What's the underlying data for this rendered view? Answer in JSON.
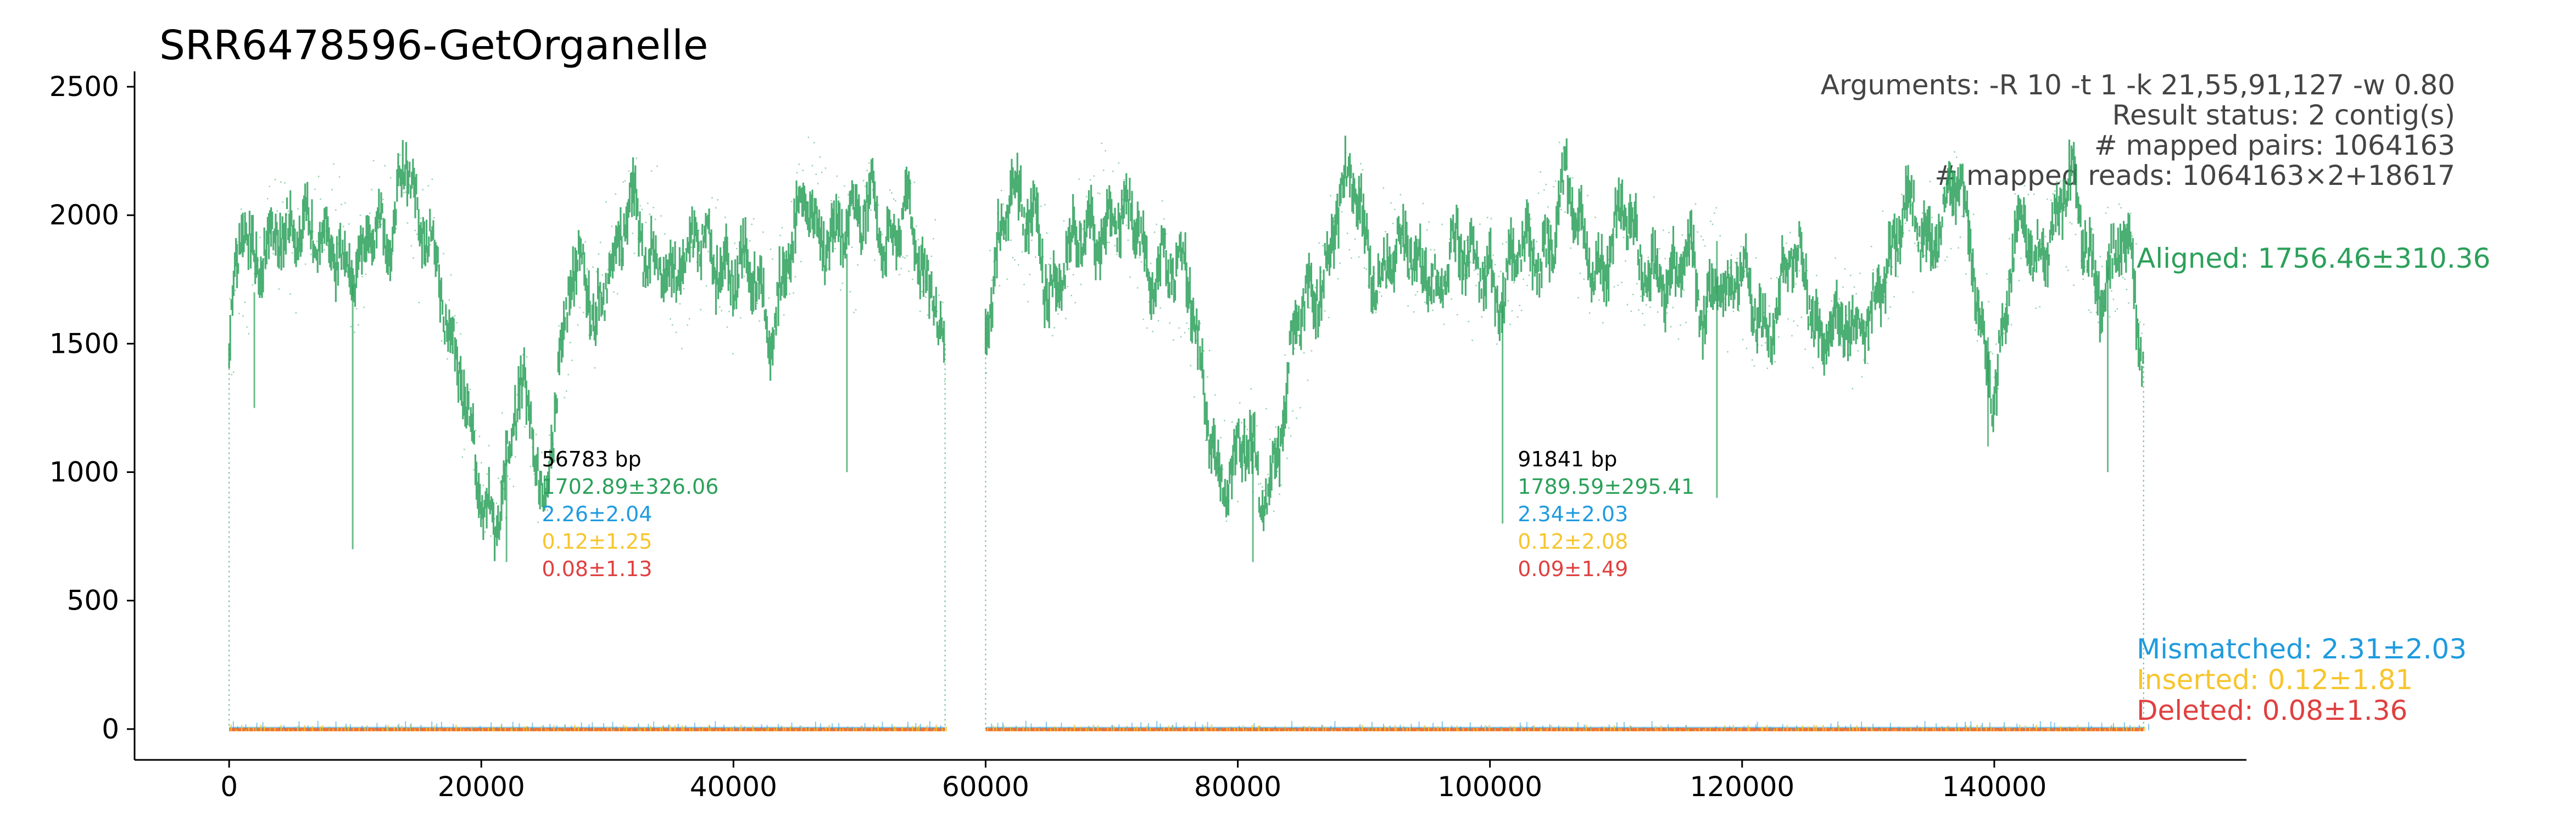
{
  "chart_data": {
    "type": "scatter",
    "title": "SRR6478596-GetOrganelle",
    "xlabel": "",
    "ylabel": "",
    "xlim": [
      -7500,
      160000
    ],
    "ylim": [
      -120,
      2560
    ],
    "x_ticks": [
      0,
      20000,
      40000,
      60000,
      80000,
      100000,
      120000,
      140000
    ],
    "y_ticks": [
      0,
      500,
      1000,
      1500,
      2000,
      2500
    ],
    "grid": false,
    "arguments_text": [
      "Arguments: -R 10 -t 1 -k 21,55,91,127 -w 0.80",
      "Result status: 2 contig(s)",
      "# mapped pairs: 1064163",
      "# mapped reads: 1064163×2+18617"
    ],
    "colors": {
      "aligned": "#2ca05a",
      "mismatched": "#1f9bde",
      "inserted": "#f7c52d",
      "deleted": "#e04040",
      "deleted_line": "#f07030"
    },
    "contigs": [
      {
        "x_start": 0,
        "x_end": 56783,
        "label_x": 24800,
        "length": "56783 bp",
        "aligned": "1702.89±326.06",
        "mismatched": "2.26±2.04",
        "inserted": "0.12±1.25",
        "deleted": "0.08±1.13",
        "coverage_profile": [
          [
            0,
            1500
          ],
          [
            1000,
            1850
          ],
          [
            2000,
            1700
          ],
          [
            3000,
            1900
          ],
          [
            4000,
            1950
          ],
          [
            5000,
            1800
          ],
          [
            6000,
            1900
          ],
          [
            7000,
            2000
          ],
          [
            8000,
            2050
          ],
          [
            9000,
            1850
          ],
          [
            10000,
            1700
          ],
          [
            11000,
            1950
          ],
          [
            12000,
            2050
          ],
          [
            13000,
            1900
          ],
          [
            14000,
            2100
          ],
          [
            15000,
            1850
          ],
          [
            16000,
            1950
          ],
          [
            17000,
            1700
          ],
          [
            18000,
            1400
          ],
          [
            19000,
            1150
          ],
          [
            20000,
            1000
          ],
          [
            21000,
            950
          ],
          [
            22000,
            1050
          ],
          [
            23000,
            1300
          ],
          [
            24000,
            1150
          ],
          [
            25000,
            900
          ],
          [
            26000,
            1300
          ],
          [
            27000,
            1600
          ],
          [
            28000,
            1700
          ],
          [
            29000,
            1600
          ],
          [
            30000,
            1850
          ],
          [
            31000,
            1900
          ],
          [
            32000,
            2050
          ],
          [
            33000,
            1900
          ],
          [
            34000,
            2000
          ],
          [
            35000,
            1800
          ],
          [
            36000,
            1700
          ],
          [
            37000,
            1850
          ],
          [
            38000,
            1900
          ],
          [
            39000,
            1800
          ],
          [
            40000,
            1650
          ],
          [
            41000,
            1700
          ],
          [
            42000,
            1800
          ],
          [
            43000,
            1650
          ],
          [
            44000,
            1850
          ],
          [
            45000,
            1950
          ],
          [
            46000,
            2100
          ],
          [
            47000,
            2000
          ],
          [
            48000,
            1950
          ],
          [
            49000,
            1850
          ],
          [
            50000,
            1850
          ],
          [
            51000,
            2050
          ],
          [
            52000,
            1900
          ],
          [
            53000,
            1850
          ],
          [
            54000,
            1950
          ],
          [
            55000,
            1800
          ],
          [
            56000,
            1850
          ],
          [
            56783,
            1500
          ]
        ],
        "coverage_dips": [
          [
            2000,
            1250
          ],
          [
            9800,
            700
          ],
          [
            22000,
            650
          ],
          [
            49000,
            1000
          ]
        ]
      },
      {
        "x_start": 60000,
        "x_end": 151841,
        "label_x": 102200,
        "length": "91841 bp",
        "aligned": "1789.59±295.41",
        "mismatched": "2.34±2.03",
        "inserted": "0.12±2.08",
        "deleted": "0.09±1.49",
        "coverage_profile": [
          [
            60000,
            1600
          ],
          [
            61000,
            1900
          ],
          [
            62000,
            2000
          ],
          [
            63000,
            1850
          ],
          [
            64000,
            1950
          ],
          [
            65000,
            1750
          ],
          [
            66000,
            1800
          ],
          [
            67000,
            1850
          ],
          [
            68000,
            2000
          ],
          [
            69000,
            2050
          ],
          [
            70000,
            2100
          ],
          [
            71000,
            1950
          ],
          [
            72000,
            1900
          ],
          [
            73000,
            1750
          ],
          [
            74000,
            1850
          ],
          [
            75000,
            1700
          ],
          [
            76000,
            1650
          ],
          [
            77000,
            1400
          ],
          [
            78000,
            1200
          ],
          [
            79000,
            1000
          ],
          [
            80000,
            1050
          ],
          [
            81000,
            1150
          ],
          [
            82000,
            1000
          ],
          [
            83000,
            1100
          ],
          [
            84000,
            1300
          ],
          [
            85000,
            1500
          ],
          [
            86000,
            1650
          ],
          [
            87000,
            1800
          ],
          [
            88000,
            2000
          ],
          [
            89000,
            2050
          ],
          [
            90000,
            1950
          ],
          [
            91000,
            1850
          ],
          [
            92000,
            1950
          ],
          [
            93000,
            1900
          ],
          [
            94000,
            1800
          ],
          [
            95000,
            1850
          ],
          [
            96000,
            1750
          ],
          [
            97000,
            1800
          ],
          [
            98000,
            1700
          ],
          [
            99000,
            1750
          ],
          [
            100000,
            1800
          ],
          [
            101000,
            1650
          ],
          [
            102000,
            1800
          ],
          [
            103000,
            1900
          ],
          [
            104000,
            1950
          ],
          [
            105000,
            2050
          ],
          [
            106000,
            2150
          ],
          [
            107000,
            1900
          ],
          [
            108000,
            1850
          ],
          [
            109000,
            1800
          ],
          [
            110000,
            1900
          ],
          [
            111000,
            1850
          ],
          [
            112000,
            1700
          ],
          [
            113000,
            1850
          ],
          [
            114000,
            1800
          ],
          [
            115000,
            1750
          ],
          [
            116000,
            1850
          ],
          [
            117000,
            1700
          ],
          [
            118000,
            1900
          ],
          [
            119000,
            1650
          ],
          [
            120000,
            1700
          ],
          [
            121000,
            1600
          ],
          [
            122000,
            1550
          ],
          [
            123000,
            1650
          ],
          [
            124000,
            1750
          ],
          [
            125000,
            1700
          ],
          [
            126000,
            1600
          ],
          [
            127000,
            1700
          ],
          [
            128000,
            1600
          ],
          [
            129000,
            1500
          ],
          [
            130000,
            1650
          ],
          [
            131000,
            1850
          ],
          [
            132000,
            1800
          ],
          [
            133000,
            1950
          ],
          [
            134000,
            1850
          ],
          [
            135000,
            1900
          ],
          [
            136000,
            2000
          ],
          [
            137000,
            2050
          ],
          [
            138000,
            1900
          ],
          [
            139000,
            1600
          ],
          [
            140000,
            1450
          ],
          [
            141000,
            1700
          ],
          [
            142000,
            1950
          ],
          [
            143000,
            1850
          ],
          [
            144000,
            1900
          ],
          [
            145000,
            1950
          ],
          [
            146000,
            2000
          ],
          [
            147000,
            1850
          ],
          [
            148000,
            1750
          ],
          [
            149000,
            1800
          ],
          [
            150000,
            1900
          ],
          [
            151000,
            1750
          ],
          [
            151841,
            1450
          ]
        ],
        "coverage_dips": [
          [
            81200,
            650
          ],
          [
            101000,
            800
          ],
          [
            118000,
            900
          ],
          [
            139500,
            1100
          ],
          [
            149000,
            1000
          ]
        ]
      }
    ],
    "summary": {
      "aligned": "Aligned: 1756.46±310.36",
      "mismatched": "Mismatched: 2.31±2.03",
      "inserted": "Inserted: 0.12±1.81",
      "deleted": "Deleted: 0.08±1.36"
    }
  }
}
